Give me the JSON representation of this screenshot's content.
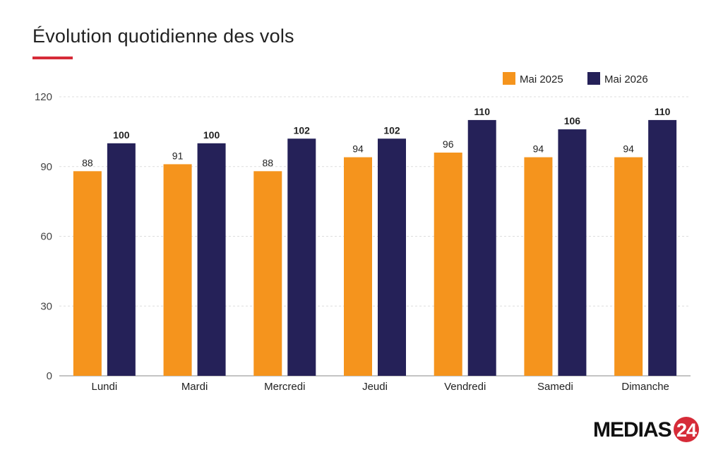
{
  "title": "Évolution quotidienne des vols",
  "brand": {
    "name": "MEDIAS24",
    "color_main": "#111111",
    "color_accent": "#d62b38"
  },
  "colors": {
    "series_2025": "#f5941d",
    "series_2026": "#252158",
    "title_underline": "#d62b38",
    "grid": "#dddddd"
  },
  "chart_data": {
    "type": "bar",
    "categories": [
      "Lundi",
      "Mardi",
      "Mercredi",
      "Jeudi",
      "Vendredi",
      "Samedi",
      "Dimanche"
    ],
    "series": [
      {
        "name": "Mai 2025",
        "color": "#f5941d",
        "values": [
          88,
          91,
          88,
          94,
          96,
          94,
          94
        ]
      },
      {
        "name": "Mai 2026",
        "color": "#252158",
        "values": [
          100,
          100,
          102,
          102,
          110,
          106,
          110
        ]
      }
    ],
    "ylim": [
      0,
      120
    ],
    "yticks": [
      "0",
      "30",
      "60",
      "90",
      "120"
    ],
    "grid": true,
    "legend_position": "top-right",
    "data_labels": true
  }
}
